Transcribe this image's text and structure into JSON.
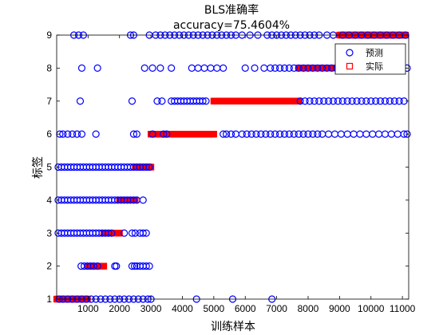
{
  "chart_data": {
    "type": "scatter",
    "title": "BLS准确率",
    "subtitle": "accuracy=75.4604%",
    "xlabel": "训练样本",
    "ylabel": "标签",
    "xlim": [
      1,
      11200
    ],
    "ylim": [
      1,
      9
    ],
    "x_ticks": [
      1000,
      2000,
      3000,
      4000,
      5000,
      6000,
      7000,
      8000,
      9000,
      10000,
      11000
    ],
    "y_ticks": [
      1,
      2,
      3,
      4,
      5,
      6,
      7,
      8,
      9
    ],
    "grid": false,
    "legend_position": "top-right",
    "series": [
      {
        "name": "预测",
        "marker": "circle",
        "color": "#0000ff",
        "points": [
          [
            80,
            1
          ],
          [
            200,
            1
          ],
          [
            350,
            1
          ],
          [
            500,
            1
          ],
          [
            650,
            1
          ],
          [
            800,
            1
          ],
          [
            950,
            1
          ],
          [
            1100,
            1
          ],
          [
            1250,
            1
          ],
          [
            1400,
            1
          ],
          [
            1550,
            1
          ],
          [
            1700,
            1
          ],
          [
            1850,
            1
          ],
          [
            2000,
            1
          ],
          [
            2150,
            1
          ],
          [
            2300,
            1
          ],
          [
            2450,
            1
          ],
          [
            2600,
            1
          ],
          [
            2750,
            1
          ],
          [
            2900,
            1
          ],
          [
            3000,
            1
          ],
          [
            4450,
            1
          ],
          [
            5600,
            1
          ],
          [
            6850,
            1
          ],
          [
            780,
            2
          ],
          [
            880,
            2
          ],
          [
            980,
            2
          ],
          [
            1080,
            2
          ],
          [
            1180,
            2
          ],
          [
            1300,
            2
          ],
          [
            1850,
            2
          ],
          [
            1900,
            2
          ],
          [
            2400,
            2
          ],
          [
            2480,
            2
          ],
          [
            2550,
            2
          ],
          [
            2650,
            2
          ],
          [
            2750,
            2
          ],
          [
            2850,
            2
          ],
          [
            2950,
            2
          ],
          [
            50,
            3
          ],
          [
            150,
            3
          ],
          [
            250,
            3
          ],
          [
            350,
            3
          ],
          [
            450,
            3
          ],
          [
            550,
            3
          ],
          [
            650,
            3
          ],
          [
            750,
            3
          ],
          [
            850,
            3
          ],
          [
            950,
            3
          ],
          [
            1050,
            3
          ],
          [
            1150,
            3
          ],
          [
            1250,
            3
          ],
          [
            1350,
            3
          ],
          [
            1450,
            3
          ],
          [
            1550,
            3
          ],
          [
            1650,
            3
          ],
          [
            1750,
            3
          ],
          [
            2150,
            3
          ],
          [
            2400,
            3
          ],
          [
            2500,
            3
          ],
          [
            2650,
            3
          ],
          [
            2750,
            3
          ],
          [
            2850,
            3
          ],
          [
            50,
            4
          ],
          [
            150,
            4
          ],
          [
            250,
            4
          ],
          [
            350,
            4
          ],
          [
            450,
            4
          ],
          [
            550,
            4
          ],
          [
            650,
            4
          ],
          [
            750,
            4
          ],
          [
            850,
            4
          ],
          [
            950,
            4
          ],
          [
            1050,
            4
          ],
          [
            1150,
            4
          ],
          [
            1250,
            4
          ],
          [
            1350,
            4
          ],
          [
            1450,
            4
          ],
          [
            1550,
            4
          ],
          [
            1650,
            4
          ],
          [
            1750,
            4
          ],
          [
            1850,
            4
          ],
          [
            1950,
            4
          ],
          [
            2050,
            4
          ],
          [
            2150,
            4
          ],
          [
            2250,
            4
          ],
          [
            2350,
            4
          ],
          [
            2450,
            4
          ],
          [
            2550,
            4
          ],
          [
            2750,
            4
          ],
          [
            50,
            5
          ],
          [
            150,
            5
          ],
          [
            250,
            5
          ],
          [
            350,
            5
          ],
          [
            450,
            5
          ],
          [
            550,
            5
          ],
          [
            650,
            5
          ],
          [
            750,
            5
          ],
          [
            850,
            5
          ],
          [
            950,
            5
          ],
          [
            1050,
            5
          ],
          [
            1150,
            5
          ],
          [
            1250,
            5
          ],
          [
            1350,
            5
          ],
          [
            1450,
            5
          ],
          [
            1550,
            5
          ],
          [
            1650,
            5
          ],
          [
            1750,
            5
          ],
          [
            1850,
            5
          ],
          [
            1950,
            5
          ],
          [
            2050,
            5
          ],
          [
            2150,
            5
          ],
          [
            2250,
            5
          ],
          [
            2350,
            5
          ],
          [
            2450,
            5
          ],
          [
            2550,
            5
          ],
          [
            2650,
            5
          ],
          [
            2750,
            5
          ],
          [
            2850,
            5
          ],
          [
            2950,
            5
          ],
          [
            100,
            6
          ],
          [
            200,
            6
          ],
          [
            350,
            6
          ],
          [
            500,
            6
          ],
          [
            650,
            6
          ],
          [
            800,
            6
          ],
          [
            1250,
            6
          ],
          [
            2450,
            6
          ],
          [
            2550,
            6
          ],
          [
            3050,
            6
          ],
          [
            3400,
            6
          ],
          [
            3500,
            6
          ],
          [
            5300,
            6
          ],
          [
            5400,
            6
          ],
          [
            5550,
            6
          ],
          [
            5700,
            6
          ],
          [
            5900,
            6
          ],
          [
            6050,
            6
          ],
          [
            6200,
            6
          ],
          [
            6350,
            6
          ],
          [
            6500,
            6
          ],
          [
            6650,
            6
          ],
          [
            6800,
            6
          ],
          [
            6950,
            6
          ],
          [
            7100,
            6
          ],
          [
            7250,
            6
          ],
          [
            7400,
            6
          ],
          [
            7550,
            6
          ],
          [
            7700,
            6
          ],
          [
            7850,
            6
          ],
          [
            8000,
            6
          ],
          [
            8150,
            6
          ],
          [
            8300,
            6
          ],
          [
            8450,
            6
          ],
          [
            8650,
            6
          ],
          [
            8850,
            6
          ],
          [
            9050,
            6
          ],
          [
            9250,
            6
          ],
          [
            9450,
            6
          ],
          [
            9650,
            6
          ],
          [
            9850,
            6
          ],
          [
            10050,
            6
          ],
          [
            10250,
            6
          ],
          [
            10450,
            6
          ],
          [
            10650,
            6
          ],
          [
            10850,
            6
          ],
          [
            11050,
            6
          ],
          [
            11150,
            6
          ],
          [
            750,
            7
          ],
          [
            2400,
            7
          ],
          [
            3200,
            7
          ],
          [
            3350,
            7
          ],
          [
            3650,
            7
          ],
          [
            3750,
            7
          ],
          [
            3850,
            7
          ],
          [
            3950,
            7
          ],
          [
            4050,
            7
          ],
          [
            4150,
            7
          ],
          [
            4250,
            7
          ],
          [
            4350,
            7
          ],
          [
            4450,
            7
          ],
          [
            4550,
            7
          ],
          [
            4650,
            7
          ],
          [
            4750,
            7
          ],
          [
            7750,
            7
          ],
          [
            7900,
            7
          ],
          [
            8050,
            7
          ],
          [
            8200,
            7
          ],
          [
            8350,
            7
          ],
          [
            8500,
            7
          ],
          [
            8650,
            7
          ],
          [
            8800,
            7
          ],
          [
            8950,
            7
          ],
          [
            9100,
            7
          ],
          [
            9250,
            7
          ],
          [
            9400,
            7
          ],
          [
            9550,
            7
          ],
          [
            9700,
            7
          ],
          [
            9850,
            7
          ],
          [
            10000,
            7
          ],
          [
            10150,
            7
          ],
          [
            10300,
            7
          ],
          [
            10450,
            7
          ],
          [
            10600,
            7
          ],
          [
            10750,
            7
          ],
          [
            10900,
            7
          ],
          [
            11050,
            7
          ],
          [
            800,
            8
          ],
          [
            1300,
            8
          ],
          [
            2800,
            8
          ],
          [
            3050,
            8
          ],
          [
            3300,
            8
          ],
          [
            3650,
            8
          ],
          [
            4300,
            8
          ],
          [
            4500,
            8
          ],
          [
            4700,
            8
          ],
          [
            4900,
            8
          ],
          [
            5100,
            8
          ],
          [
            5300,
            8
          ],
          [
            6000,
            8
          ],
          [
            6300,
            8
          ],
          [
            6600,
            8
          ],
          [
            6800,
            8
          ],
          [
            6950,
            8
          ],
          [
            7100,
            8
          ],
          [
            7250,
            8
          ],
          [
            7400,
            8
          ],
          [
            7550,
            8
          ],
          [
            7700,
            8
          ],
          [
            7850,
            8
          ],
          [
            8000,
            8
          ],
          [
            8150,
            8
          ],
          [
            8300,
            8
          ],
          [
            8450,
            8
          ],
          [
            8600,
            8
          ],
          [
            8750,
            8
          ],
          [
            8900,
            8
          ],
          [
            9050,
            8
          ],
          [
            9200,
            8
          ],
          [
            9350,
            8
          ],
          [
            9500,
            8
          ],
          [
            9650,
            8
          ],
          [
            9800,
            8
          ],
          [
            9950,
            8
          ],
          [
            10100,
            8
          ],
          [
            10250,
            8
          ],
          [
            10400,
            8
          ],
          [
            10550,
            8
          ],
          [
            10700,
            8
          ],
          [
            10850,
            8
          ],
          [
            11000,
            8
          ],
          [
            11150,
            8
          ],
          [
            550,
            9
          ],
          [
            700,
            9
          ],
          [
            850,
            9
          ],
          [
            2350,
            9
          ],
          [
            2450,
            9
          ],
          [
            2950,
            9
          ],
          [
            3150,
            9
          ],
          [
            3300,
            9
          ],
          [
            3450,
            9
          ],
          [
            3600,
            9
          ],
          [
            3750,
            9
          ],
          [
            3900,
            9
          ],
          [
            4050,
            9
          ],
          [
            4200,
            9
          ],
          [
            4350,
            9
          ],
          [
            4500,
            9
          ],
          [
            4650,
            9
          ],
          [
            4800,
            9
          ],
          [
            4950,
            9
          ],
          [
            5100,
            9
          ],
          [
            5250,
            9
          ],
          [
            5400,
            9
          ],
          [
            5550,
            9
          ],
          [
            5700,
            9
          ],
          [
            5900,
            9
          ],
          [
            6150,
            9
          ],
          [
            6400,
            9
          ],
          [
            6700,
            9
          ],
          [
            6850,
            9
          ],
          [
            7000,
            9
          ],
          [
            7150,
            9
          ],
          [
            7300,
            9
          ],
          [
            7450,
            9
          ],
          [
            7600,
            9
          ],
          [
            7750,
            9
          ],
          [
            7900,
            9
          ],
          [
            8050,
            9
          ],
          [
            8200,
            9
          ],
          [
            8350,
            9
          ],
          [
            8600,
            9
          ],
          [
            8800,
            9
          ],
          [
            9100,
            9
          ],
          [
            9300,
            9
          ],
          [
            9500,
            9
          ],
          [
            9700,
            9
          ],
          [
            9900,
            9
          ],
          [
            10100,
            9
          ],
          [
            10300,
            9
          ],
          [
            10500,
            9
          ],
          [
            10700,
            9
          ],
          [
            10900,
            9
          ],
          [
            11100,
            9
          ]
        ]
      },
      {
        "name": "实际",
        "marker": "square",
        "color": "#ff0000",
        "ranges": [
          {
            "y": 1,
            "x_start": 1,
            "x_end": 1000
          },
          {
            "y": 2,
            "x_start": 1000,
            "x_end": 1500
          },
          {
            "y": 3,
            "x_start": 1500,
            "x_end": 2000
          },
          {
            "y": 4,
            "x_start": 2000,
            "x_end": 2500
          },
          {
            "y": 5,
            "x_start": 2500,
            "x_end": 3000
          },
          {
            "y": 6,
            "x_start": 3000,
            "x_end": 5000
          },
          {
            "y": 7,
            "x_start": 5000,
            "x_end": 7700
          },
          {
            "y": 8,
            "x_start": 7700,
            "x_end": 9000
          },
          {
            "y": 9,
            "x_start": 9000,
            "x_end": 11100
          }
        ]
      }
    ]
  }
}
